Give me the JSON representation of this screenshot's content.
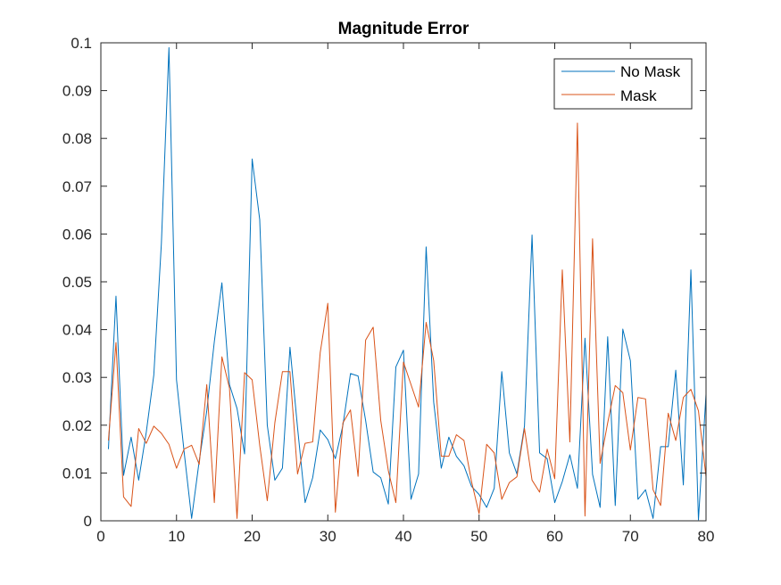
{
  "chart_data": {
    "type": "line",
    "title": "Magnitude Error",
    "xlabel": "",
    "ylabel": "",
    "xlim": [
      0,
      80
    ],
    "ylim": [
      0,
      0.1
    ],
    "xticks": [
      0,
      10,
      20,
      30,
      40,
      50,
      60,
      70,
      80
    ],
    "yticks": [
      0,
      0.01,
      0.02,
      0.03,
      0.04,
      0.05,
      0.06,
      0.07,
      0.08,
      0.09,
      0.1
    ],
    "ytick_labels": [
      "0",
      "0.01",
      "0.02",
      "0.03",
      "0.04",
      "0.05",
      "0.06",
      "0.07",
      "0.08",
      "0.09",
      "0.1"
    ],
    "grid": false,
    "legend_position": "top-right",
    "x": [
      1,
      2,
      3,
      4,
      5,
      6,
      7,
      8,
      9,
      10,
      11,
      12,
      13,
      14,
      15,
      16,
      17,
      18,
      19,
      20,
      21,
      22,
      23,
      24,
      25,
      26,
      27,
      28,
      29,
      30,
      31,
      32,
      33,
      34,
      35,
      36,
      37,
      38,
      39,
      40,
      41,
      42,
      43,
      44,
      45,
      46,
      47,
      48,
      49,
      50,
      51,
      52,
      53,
      54,
      55,
      56,
      57,
      58,
      59,
      60,
      61,
      62,
      63,
      64,
      65,
      66,
      67,
      68,
      69,
      70,
      71,
      72,
      73,
      74,
      75,
      76,
      77,
      78,
      79,
      80
    ],
    "series": [
      {
        "name": "No Mask",
        "color": "#0072BD",
        "values": [
          0.015,
          0.047,
          0.0095,
          0.0175,
          0.0085,
          0.0185,
          0.0305,
          0.058,
          0.099,
          0.0295,
          0.0145,
          0.0005,
          0.0125,
          0.023,
          0.0375,
          0.0498,
          0.0285,
          0.0235,
          0.014,
          0.0757,
          0.063,
          0.02,
          0.0085,
          0.011,
          0.0363,
          0.0195,
          0.0038,
          0.009,
          0.019,
          0.017,
          0.013,
          0.02,
          0.0308,
          0.0303,
          0.021,
          0.0102,
          0.009,
          0.0035,
          0.0322,
          0.0357,
          0.0045,
          0.0098,
          0.0573,
          0.0248,
          0.011,
          0.0175,
          0.0135,
          0.0115,
          0.0072,
          0.0055,
          0.0028,
          0.0068,
          0.0312,
          0.0142,
          0.0098,
          0.0198,
          0.0598,
          0.0142,
          0.013,
          0.0038,
          0.0082,
          0.0138,
          0.0068,
          0.0382,
          0.0097,
          0.0028,
          0.0385,
          0.0032,
          0.0401,
          0.0335,
          0.0045,
          0.0065,
          0.0005,
          0.0155,
          0.0155,
          0.0315,
          0.0075,
          0.0525,
          0.0002,
          0.0265
        ]
      },
      {
        "name": "Mask",
        "color": "#D95319",
        "values": [
          0.0168,
          0.0373,
          0.005,
          0.003,
          0.0193,
          0.0162,
          0.0198,
          0.0183,
          0.016,
          0.011,
          0.015,
          0.0158,
          0.0118,
          0.0285,
          0.0038,
          0.0343,
          0.0278,
          0.0005,
          0.031,
          0.0295,
          0.0158,
          0.0042,
          0.0205,
          0.0312,
          0.0312,
          0.0098,
          0.0162,
          0.0165,
          0.0352,
          0.0455,
          0.0018,
          0.0205,
          0.0232,
          0.0093,
          0.0378,
          0.0405,
          0.021,
          0.0105,
          0.0038,
          0.0332,
          0.0285,
          0.0238,
          0.0415,
          0.0335,
          0.0135,
          0.0135,
          0.018,
          0.0168,
          0.0082,
          0.0015,
          0.016,
          0.0142,
          0.0045,
          0.008,
          0.0092,
          0.0193,
          0.0085,
          0.006,
          0.015,
          0.0088,
          0.0525,
          0.0165,
          0.0832,
          0.001,
          0.059,
          0.012,
          0.0205,
          0.0283,
          0.0268,
          0.0148,
          0.0258,
          0.0255,
          0.0065,
          0.0032,
          0.0225,
          0.0168,
          0.0258,
          0.0275,
          0.023,
          0.0092
        ]
      }
    ]
  }
}
